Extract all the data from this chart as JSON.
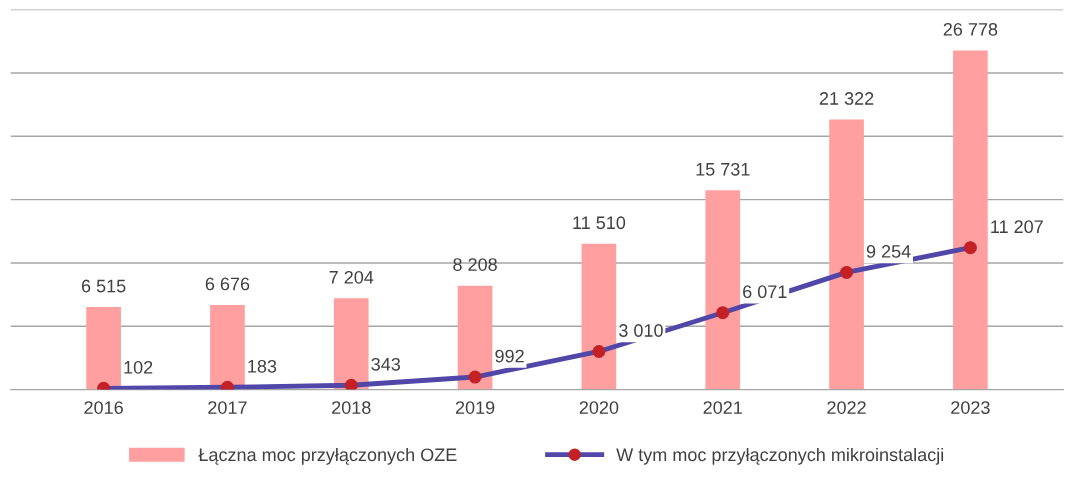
{
  "chart_data": {
    "type": "bar",
    "categories": [
      "2016",
      "2017",
      "2018",
      "2019",
      "2020",
      "2021",
      "2022",
      "2023"
    ],
    "series": [
      {
        "name": "Łączna moc przyłączonych OZE",
        "color": "#ff9f9f",
        "values": [
          6515,
          6676,
          7204,
          8208,
          11510,
          15731,
          21322,
          26778
        ],
        "value_labels": [
          "6 515",
          "6 676",
          "7 204",
          "8 208",
          "11 510",
          "15 731",
          "21 322",
          "26 778"
        ]
      },
      {
        "name": "W tym moc przyłączonych mikroinstalacji",
        "type": "line",
        "color": "#5147a8",
        "colors": [
          "#c42127",
          "#c42127",
          "#c42127",
          "#c42127",
          "#c42127",
          "#c42127",
          "#c42127",
          "#c42127"
        ],
        "values": [
          102,
          183,
          343,
          992,
          3010,
          6071,
          9254,
          11207
        ],
        "value_labels": [
          "102",
          "183",
          "343",
          "992",
          "3 010",
          "6 071",
          "9 254",
          "11 207"
        ]
      }
    ],
    "ylim": [
      0,
      30000
    ],
    "yticks": [
      0,
      5000,
      10000,
      15000,
      20000,
      25000,
      30000
    ],
    "tick_labels": "x",
    "grid": "y",
    "legend": "bottom",
    "marker": "circle",
    "line_style": "solid"
  }
}
